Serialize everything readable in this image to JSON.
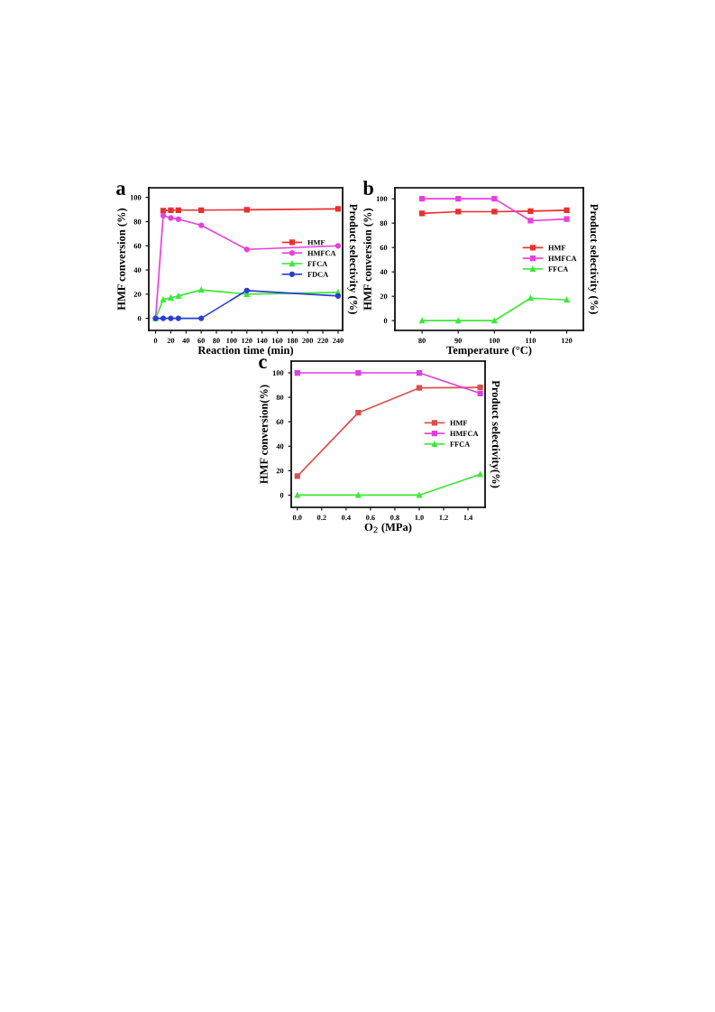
{
  "chart_data": [
    {
      "type": "line",
      "title": "a",
      "xlabel": "Reaction time (min)",
      "ylabel": "HMF conversion (%)",
      "y2label": "Product selectivity (%)",
      "xlim": [
        -9,
        246
      ],
      "xticks": [
        0,
        20,
        40,
        60,
        80,
        100,
        120,
        140,
        160,
        180,
        200,
        220,
        240
      ],
      "ylim": [
        -10,
        108
      ],
      "yticks": [
        0,
        20,
        40,
        60,
        80,
        100
      ],
      "legend": "center right",
      "grid": false,
      "series": [
        {
          "name": "HMF",
          "color": "#e8302f",
          "marker": "square",
          "x": [
            10,
            20,
            30,
            60,
            120,
            240
          ],
          "values": [
            89,
            89.5,
            89.5,
            89.5,
            89.8,
            90.5
          ]
        },
        {
          "name": "HMFCA",
          "color": "#e83fe0",
          "marker": "circle",
          "x": [
            0,
            10,
            20,
            30,
            60,
            120,
            240
          ],
          "values": [
            0,
            85,
            83,
            82,
            77,
            57,
            60
          ]
        },
        {
          "name": "FFCA",
          "color": "#3ee83a",
          "marker": "triangle",
          "x": [
            0,
            10,
            20,
            30,
            60,
            120,
            240
          ],
          "values": [
            0,
            15.5,
            17,
            18.5,
            23.5,
            20,
            21.5
          ]
        },
        {
          "name": "FDCA",
          "color": "#2a3fd0",
          "marker": "circle",
          "x": [
            0,
            10,
            20,
            30,
            60,
            120,
            240
          ],
          "values": [
            0,
            0,
            0,
            0,
            0,
            23,
            18.5
          ]
        }
      ]
    },
    {
      "type": "line",
      "title": "b",
      "xlabel": "Temperature (°C)",
      "ylabel": "HMF conversion (%)",
      "y2label": "Product selectivity (%)",
      "xlim": [
        72.5,
        124.6
      ],
      "xticks": [
        80,
        90,
        100,
        110,
        120
      ],
      "ylim": [
        -8,
        109
      ],
      "yticks": [
        0,
        20,
        40,
        60,
        80,
        100
      ],
      "legend": "center right",
      "grid": false,
      "series": [
        {
          "name": "HMF",
          "color": "#e8302f",
          "marker": "square",
          "x": [
            80,
            90,
            100,
            110,
            120
          ],
          "values": [
            88,
            89.4,
            89.4,
            89.9,
            90.6
          ]
        },
        {
          "name": "HMFCA",
          "color": "#e83fe0",
          "marker": "square",
          "x": [
            80,
            90,
            100,
            110,
            120
          ],
          "values": [
            100,
            100,
            100,
            82,
            83.3
          ]
        },
        {
          "name": "FFCA",
          "color": "#3ee83a",
          "marker": "triangle",
          "x": [
            80,
            90,
            100,
            110,
            120
          ],
          "values": [
            0,
            0,
            0,
            18.5,
            17
          ]
        }
      ]
    },
    {
      "type": "line",
      "title": "c",
      "xlabel": "O$_{2}$ (MPa)",
      "ylabel": "HMF conversion(%)",
      "y2label": "Product selectivity(%)",
      "xlim": [
        -0.05,
        1.54
      ],
      "xticks": [
        {
          "value": 0,
          "label": "0.0"
        },
        0.2,
        0.4,
        0.6,
        0.8,
        {
          "value": 1,
          "label": "1.0"
        },
        1.2,
        1.4
      ],
      "ylim": [
        -10,
        109.6
      ],
      "yticks": [
        0,
        20,
        40,
        60,
        80,
        100
      ],
      "legend": "center right",
      "grid": false,
      "series": [
        {
          "name": "HMF",
          "color": "#d9504a",
          "marker": "square",
          "x": [
            0,
            0.5,
            1,
            1.5
          ],
          "values": [
            15.5,
            67.4,
            87.7,
            88.1
          ]
        },
        {
          "name": "HMFCA",
          "color": "#e040e0",
          "marker": "square",
          "x": [
            0,
            0.5,
            1,
            1.5
          ],
          "values": [
            100,
            100,
            100,
            83.2
          ]
        },
        {
          "name": "FFCA",
          "color": "#3ee83a",
          "marker": "triangle",
          "x": [
            0,
            0.5,
            1,
            1.5
          ],
          "values": [
            0,
            0,
            0,
            17
          ]
        }
      ]
    }
  ]
}
